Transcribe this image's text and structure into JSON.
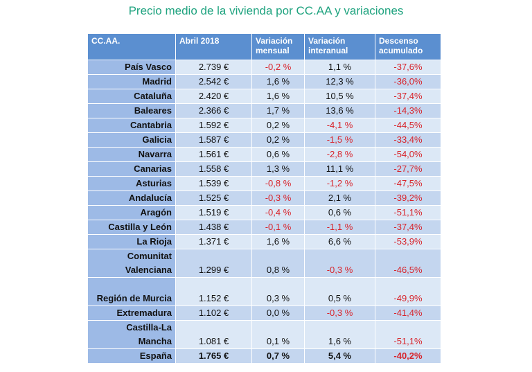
{
  "title": "Precio medio de la vivienda por CC.AA y variaciones",
  "table": {
    "headers": [
      "CC.AA.",
      "Abril 2018",
      "Variación mensual",
      "Variación interanual",
      "Descenso acumulado"
    ],
    "rows": [
      {
        "region": "País Vasco",
        "price": "2.739 €",
        "monthly": "-0,2 %",
        "yearly": "1,1 %",
        "accum": "-37,6%"
      },
      {
        "region": "Madrid",
        "price": "2.542 €",
        "monthly": "1,6 %",
        "yearly": "12,3 %",
        "accum": "-36,0%"
      },
      {
        "region": "Cataluña",
        "price": "2.420 €",
        "monthly": "1,6 %",
        "yearly": "10,5 %",
        "accum": "-37,4%"
      },
      {
        "region": "Baleares",
        "price": "2.366 €",
        "monthly": "1,7 %",
        "yearly": "13,6 %",
        "accum": "-14,3%"
      },
      {
        "region": "Cantabria",
        "price": "1.592 €",
        "monthly": "0,2 %",
        "yearly": "-4,1 %",
        "accum": "-44,5%"
      },
      {
        "region": "Galicia",
        "price": "1.587 €",
        "monthly": "0,2 %",
        "yearly": "-1,5 %",
        "accum": "-33,4%"
      },
      {
        "region": "Navarra",
        "price": "1.561 €",
        "monthly": "0,6 %",
        "yearly": "-2,8 %",
        "accum": "-54,0%"
      },
      {
        "region": "Canarias",
        "price": "1.558 €",
        "monthly": "1,3 %",
        "yearly": "11,1 %",
        "accum": "-27,7%"
      },
      {
        "region": "Asturias",
        "price": "1.539 €",
        "monthly": "-0,8 %",
        "yearly": "-1,2 %",
        "accum": "-47,5%"
      },
      {
        "region": "Andalucía",
        "price": "1.525 €",
        "monthly": "-0,3 %",
        "yearly": "2,1 %",
        "accum": "-39,2%"
      },
      {
        "region": "Aragón",
        "price": "1.519 €",
        "monthly": "-0,4 %",
        "yearly": "0,6 %",
        "accum": "-51,1%"
      },
      {
        "region": "Castilla y León",
        "price": "1.438 €",
        "monthly": "-0,1 %",
        "yearly": "-1,1 %",
        "accum": "-37,4%"
      },
      {
        "region": "La Rioja",
        "price": "1.371 €",
        "monthly": "1,6 %",
        "yearly": "6,6 %",
        "accum": "-53,9%"
      },
      {
        "region": "Comunitat Valenciana",
        "price": "1.299 €",
        "monthly": "0,8 %",
        "yearly": "-0,3 %",
        "accum": "-46,5%"
      },
      {
        "region": "Región de Murcia",
        "price": "1.152 €",
        "monthly": "0,3 %",
        "yearly": "0,5 %",
        "accum": "-49,9%"
      },
      {
        "region": "Extremadura",
        "price": "1.102 €",
        "monthly": "0,0 %",
        "yearly": "-0,3 %",
        "accum": "-41,4%"
      },
      {
        "region": "Castilla-La Mancha",
        "price": "1.081 €",
        "monthly": "0,1 %",
        "yearly": "1,6 %",
        "accum": "-51,1%"
      },
      {
        "region": "España",
        "price": "1.765 €",
        "monthly": "0,7 %",
        "yearly": "5,4 %",
        "accum": "-40,2%"
      }
    ]
  },
  "colors": {
    "title": "#1fa37f",
    "header_bg": "#5b8fd0",
    "region_bg": "#9dbae6",
    "cell_light": "#dce8f6",
    "cell_dark": "#c4d6ef",
    "negative": "#d8242b"
  }
}
